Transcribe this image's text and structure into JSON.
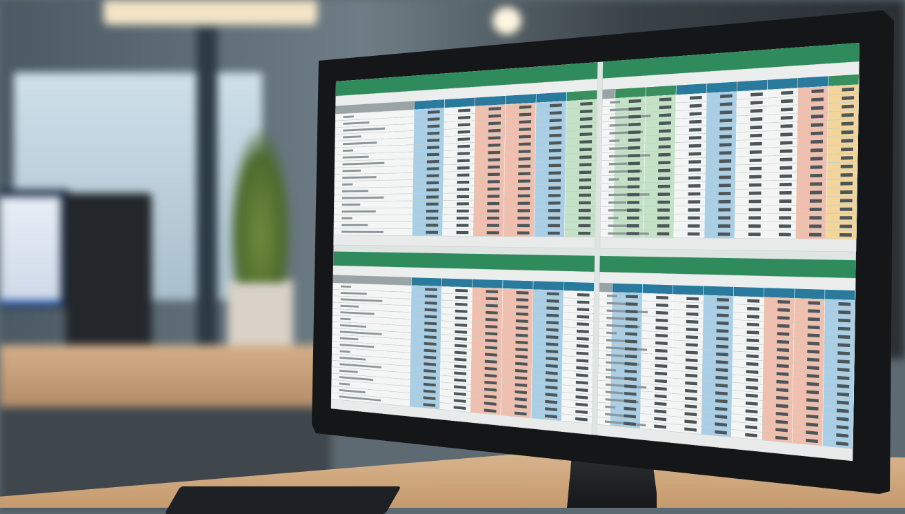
{
  "scene": {
    "subject": "monitor-with-spreadsheets",
    "colors": {
      "title_bar": "#2f8a5c",
      "header_blue": "#2a7a9e",
      "header_green": "#3a8f5f",
      "col_blue": "#a9cfe6",
      "col_salmon": "#f1bfae",
      "col_green": "#c4e2c6",
      "col_yellow": "#f2d59a",
      "col_white": "#f3f5f4",
      "bezel": "#141618",
      "desk": "#c9a27a"
    },
    "panes": [
      {
        "columns": [
          "white",
          "white",
          "blue",
          "white",
          "salmon",
          "salmon",
          "blue",
          "green"
        ]
      },
      {
        "columns": [
          "green",
          "green",
          "white",
          "blue",
          "white",
          "white",
          "salmon",
          "yellow",
          "green"
        ]
      },
      {
        "columns": [
          "white",
          "white",
          "blue",
          "white",
          "salmon",
          "salmon",
          "blue",
          "white"
        ]
      },
      {
        "columns": [
          "blue",
          "white",
          "white",
          "blue",
          "white",
          "salmon",
          "salmon",
          "blue",
          "white"
        ]
      }
    ]
  }
}
